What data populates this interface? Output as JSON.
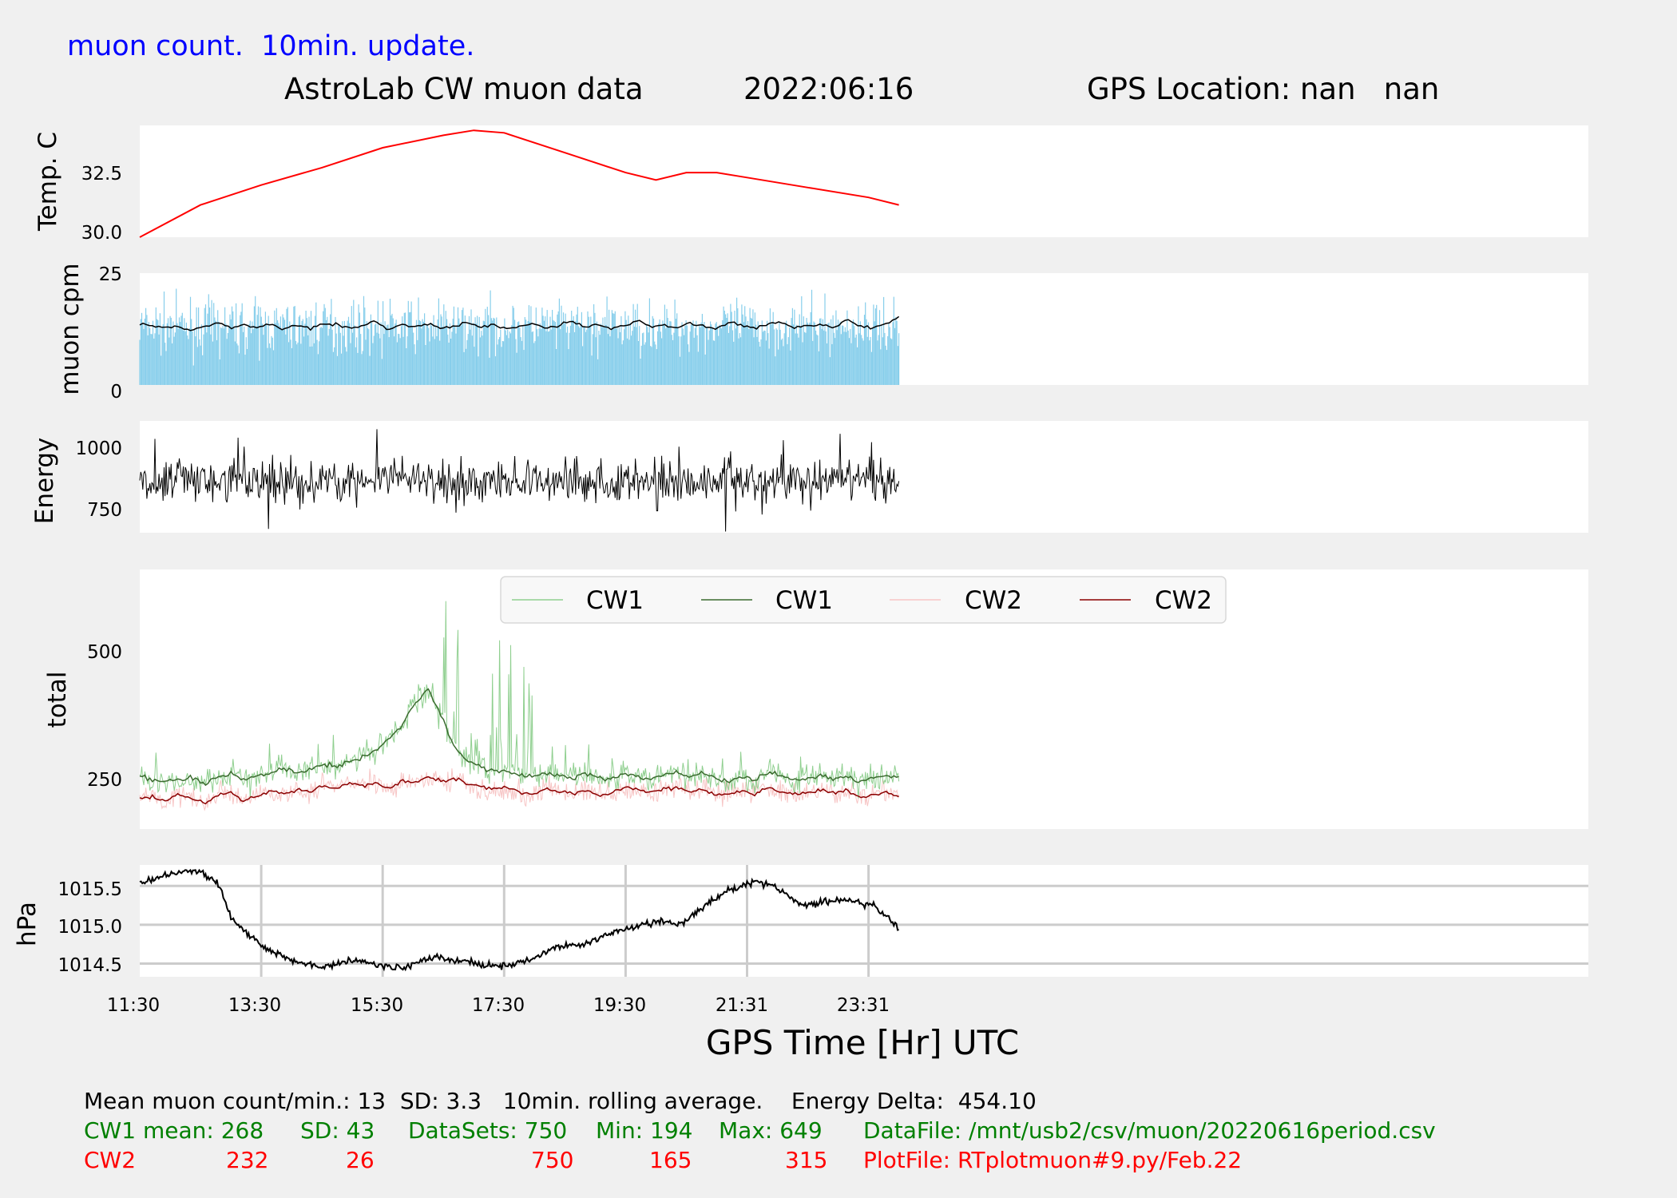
{
  "header": {
    "update_note": "muon count.  10min. update.",
    "title": "AstroLab CW muon data",
    "date": "2022:06:16",
    "gps_location": "GPS Location: nan   nan"
  },
  "colors": {
    "temperature": "#ff0000",
    "muon_bars": "#87ceeb",
    "rolling_avg": "#000000",
    "cw1_raw": "#8fcf8f",
    "cw1_avg": "#3b6b2f",
    "cw2_raw": "#f7c5c5",
    "cw2_avg": "#8b0000",
    "header": "#0000ff",
    "info_green": "#008000",
    "info_red": "#ff0000"
  },
  "chart_data": [
    {
      "type": "line",
      "ylabel": "Temp. C",
      "yticks": [
        "30.0",
        "32.5"
      ],
      "ylim": [
        30.0,
        34.5
      ],
      "x_hours": [
        11.5,
        12.5,
        13.5,
        14.5,
        15.5,
        16.5,
        17.0,
        17.5,
        18.5,
        19.5,
        20.0,
        20.5,
        21.0,
        21.5,
        22.5,
        23.5,
        24.0
      ],
      "series": [
        {
          "values": [
            30.0,
            31.3,
            32.1,
            32.8,
            33.6,
            34.1,
            34.3,
            34.2,
            33.4,
            32.6,
            32.3,
            32.6,
            32.6,
            32.4,
            32.0,
            31.6,
            31.3
          ]
        }
      ]
    },
    {
      "type": "bar",
      "ylabel": "muon cpm",
      "yticks": [
        "0",
        "25"
      ],
      "ylim": [
        0,
        25
      ],
      "x_range_hours": [
        11.5,
        24.0
      ],
      "n_points": 750,
      "mean": 13,
      "sd": 3.3,
      "rolling_avg": [
        13.6,
        13.2,
        12.8,
        13.1,
        12.4,
        13.2,
        13.8,
        12.7,
        13.5,
        12.9,
        13.6,
        12.5,
        13.4,
        12.7,
        13.9,
        13.5,
        12.6,
        13.1,
        14.2,
        12.5,
        13.5,
        12.9,
        13.7,
        12.6,
        13.2,
        13.9,
        12.8,
        13.5,
        12.4,
        13.1,
        13.7,
        12.7,
        13.4,
        14.3,
        12.9,
        13.5,
        12.6,
        13.3,
        14.4,
        12.8,
        13.6,
        12.7,
        13.9,
        13.2,
        12.5,
        14.0,
        13.3,
        12.8,
        13.6,
        14.1,
        12.6,
        13.3,
        13.7,
        12.9,
        14.5,
        13.2,
        12.7,
        13.6,
        14.9
      ]
    },
    {
      "type": "line",
      "ylabel": "Energy",
      "yticks": [
        "750",
        "1000"
      ],
      "ylim": [
        655,
        1110
      ],
      "x_range_hours": [
        11.5,
        24.0
      ],
      "n_points": 750,
      "energy_delta": 454.1
    },
    {
      "type": "line",
      "ylabel": "total",
      "yticks": [
        "250",
        "500"
      ],
      "ylim": [
        160,
        660
      ],
      "x_range_hours": [
        11.5,
        24.0
      ],
      "legend": [
        "CW1",
        "CW1",
        "CW2",
        "CW2"
      ],
      "legend_position": "top",
      "series": [
        {
          "name": "CW1",
          "mean": 268,
          "sd": 43,
          "datasets": 750,
          "min": 194,
          "max": 649,
          "avg": [
            262,
            256,
            251,
            254,
            258,
            249,
            260,
            266,
            255,
            262,
            270,
            276,
            268,
            274,
            285,
            279,
            288,
            296,
            312,
            330,
            360,
            400,
            430,
            380,
            320,
            292,
            280,
            272,
            270,
            265,
            262,
            268,
            262,
            258,
            266,
            260,
            255,
            268,
            262,
            256,
            262,
            270,
            260,
            268,
            258,
            252,
            262,
            256,
            270,
            262,
            255,
            258,
            264,
            256,
            262,
            250,
            258,
            262,
            262
          ]
        },
        {
          "name": "CW2",
          "mean": 232,
          "sd": 26,
          "datasets": 750,
          "min": 165,
          "max": 315,
          "avg": [
            218,
            222,
            214,
            228,
            220,
            210,
            225,
            230,
            212,
            224,
            234,
            228,
            236,
            231,
            244,
            238,
            250,
            244,
            248,
            238,
            252,
            248,
            262,
            252,
            258,
            248,
            242,
            236,
            240,
            231,
            226,
            238,
            232,
            228,
            236,
            224,
            230,
            240,
            236,
            230,
            236,
            240,
            232,
            238,
            225,
            228,
            234,
            228,
            240,
            233,
            226,
            231,
            236,
            228,
            234,
            220,
            226,
            231,
            222
          ]
        }
      ]
    },
    {
      "type": "line",
      "ylabel": "hPa",
      "yticks": [
        "1014.5",
        "1015.0",
        "1015.5"
      ],
      "ylim": [
        1014.33,
        1015.77
      ],
      "grid": true,
      "x_range_hours": [
        11.5,
        24.0
      ],
      "xticks": [
        "11:30",
        "13:30",
        "15:30",
        "17:30",
        "19:30",
        "21:31",
        "23:31"
      ],
      "xlabel": "GPS Time  [Hr] UTC",
      "x_hours": [
        11.5,
        11.8,
        12.2,
        12.5,
        12.8,
        13.0,
        13.3,
        13.6,
        14.0,
        14.5,
        15.0,
        15.4,
        15.8,
        16.3,
        16.8,
        17.2,
        17.6,
        18.0,
        18.3,
        18.8,
        19.3,
        19.7,
        20.1,
        20.4,
        20.8,
        21.2,
        21.6,
        22.0,
        22.4,
        22.8,
        23.2,
        23.6,
        24.0
      ],
      "values": [
        1015.52,
        1015.61,
        1015.68,
        1015.69,
        1015.52,
        1015.1,
        1014.88,
        1014.68,
        1014.55,
        1014.45,
        1014.55,
        1014.48,
        1014.44,
        1014.58,
        1014.53,
        1014.48,
        1014.48,
        1014.56,
        1014.7,
        1014.75,
        1014.9,
        1014.98,
        1015.05,
        1015.0,
        1015.25,
        1015.45,
        1015.55,
        1015.48,
        1015.25,
        1015.3,
        1015.32,
        1015.24,
        1014.95
      ]
    }
  ],
  "info": {
    "line1": "Mean muon count/min.: 13  SD: 3.3   10min. rolling average.    Energy Delta:  454.10",
    "cw1": {
      "label": "CW1 mean: 268",
      "sd": "SD: 43",
      "datasets": "DataSets: 750",
      "min": "Min: 194",
      "max": "Max: 649",
      "file": "DataFile: /mnt/usb2/csv/muon/20220616period.csv"
    },
    "cw2": {
      "label": "CW2",
      "mean": "232",
      "sd": "26",
      "datasets": "750",
      "min": "165",
      "max": "315",
      "file": "PlotFile: RTplotmuon#9.py/Feb.22"
    }
  }
}
